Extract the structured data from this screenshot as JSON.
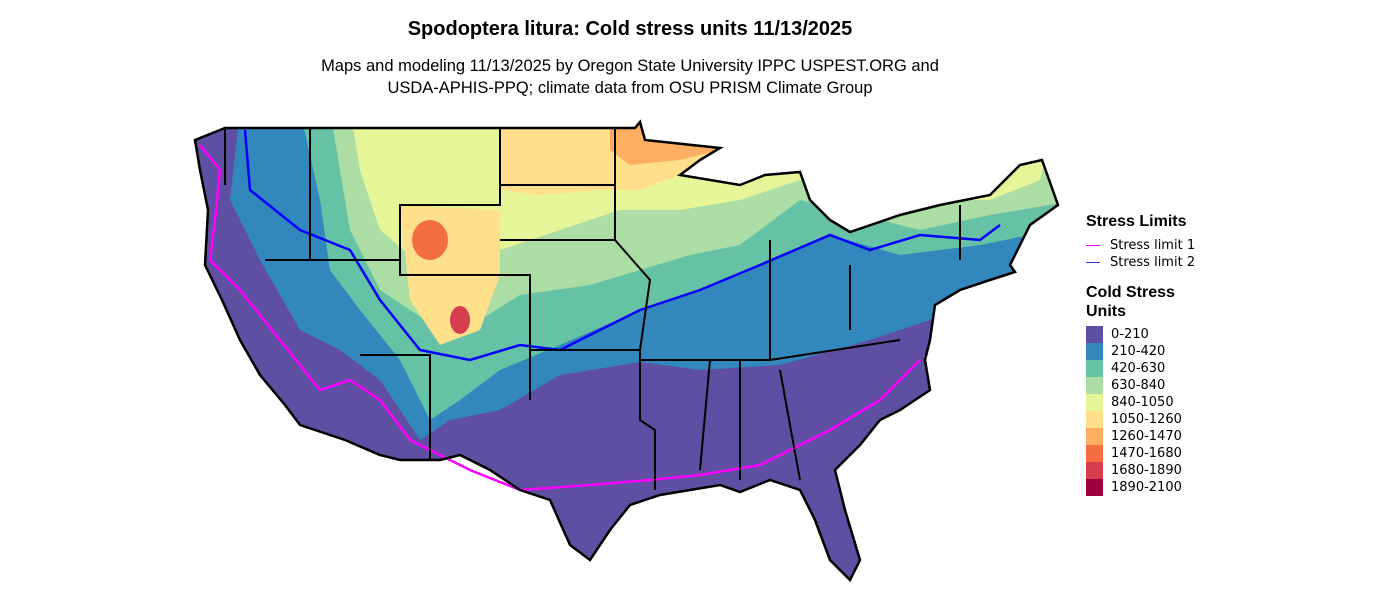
{
  "title": "Spodoptera litura: Cold stress units 11/13/2025",
  "subtitle_line1": "Maps and modeling 11/13/2025 by Oregon State University IPPC USPEST.ORG and",
  "subtitle_line2": "USDA-APHIS-PPQ; climate data from OSU PRISM Climate Group",
  "legend": {
    "limits_title": "Stress Limits",
    "limits": [
      {
        "label": "Stress limit 1",
        "color": "#ff00ff"
      },
      {
        "label": "Stress limit 2",
        "color": "#0000ff"
      }
    ],
    "units_title_line1": "Cold Stress",
    "units_title_line2": "Units",
    "classes": [
      {
        "label": "0-210",
        "color": "#5e4fa2"
      },
      {
        "label": "210-420",
        "color": "#3288bd"
      },
      {
        "label": "420-630",
        "color": "#66c2a5"
      },
      {
        "label": "630-840",
        "color": "#abdda4"
      },
      {
        "label": "840-1050",
        "color": "#e6f598"
      },
      {
        "label": "1050-1260",
        "color": "#fee08b"
      },
      {
        "label": "1260-1470",
        "color": "#fdae61"
      },
      {
        "label": "1470-1680",
        "color": "#f46d43"
      },
      {
        "label": "1680-1890",
        "color": "#d53e4f"
      },
      {
        "label": "1890-2100",
        "color": "#9e0142"
      }
    ]
  }
}
